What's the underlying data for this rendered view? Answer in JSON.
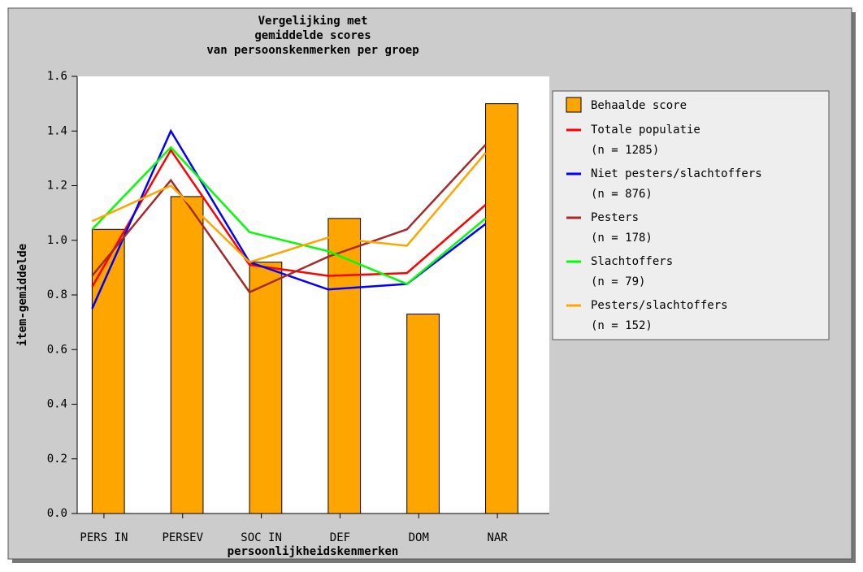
{
  "chart_data": {
    "type": "bar-line",
    "title": [
      "Vergelijking met",
      "gemiddelde scores",
      "van persoonskenmerken per groep"
    ],
    "x_label": "persoonlijkheidskenmerken",
    "y_label": "item-gemiddelde",
    "categories": [
      "PERS IN",
      "PERSEV",
      "SOC IN",
      "DEF",
      "DOM",
      "NAR"
    ],
    "bars": {
      "name": "Behaalde score",
      "color": "#ffa500",
      "values": [
        1.04,
        1.16,
        0.92,
        1.08,
        0.73,
        1.5
      ]
    },
    "series": [
      {
        "name": "Totale populatie",
        "n_label": "(n = 1285)",
        "color": "#ff0000",
        "values": [
          0.83,
          1.33,
          0.91,
          0.87,
          0.88,
          1.13
        ]
      },
      {
        "name": "Niet pesters/slachtoffers",
        "n_label": "(n = 876)",
        "color": "#0000ff",
        "values": [
          0.75,
          1.4,
          0.92,
          0.82,
          0.84,
          1.06
        ]
      },
      {
        "name": "Pesters",
        "n_label": "(n = 178)",
        "color": "#a52a2a",
        "values": [
          0.87,
          1.22,
          0.81,
          0.94,
          1.04,
          1.35
        ]
      },
      {
        "name": "Slachtoffers",
        "n_label": "(n = 79)",
        "color": "#00ff00",
        "values": [
          1.04,
          1.34,
          1.03,
          0.96,
          0.84,
          1.08
        ]
      },
      {
        "name": "Pesters/slachtoffers",
        "n_label": "(n = 152)",
        "color": "#ffa500",
        "values": [
          1.07,
          1.2,
          0.92,
          1.01,
          0.98,
          1.32
        ]
      }
    ],
    "ylim": [
      0,
      1.6
    ],
    "yticks": [
      {
        "value": 0,
        "label": "0.0"
      },
      0.2,
      0.4,
      0.6,
      0.8,
      {
        "value": 1,
        "label": "1.0"
      },
      1.2,
      1.4,
      1.6
    ],
    "legend": "right"
  }
}
